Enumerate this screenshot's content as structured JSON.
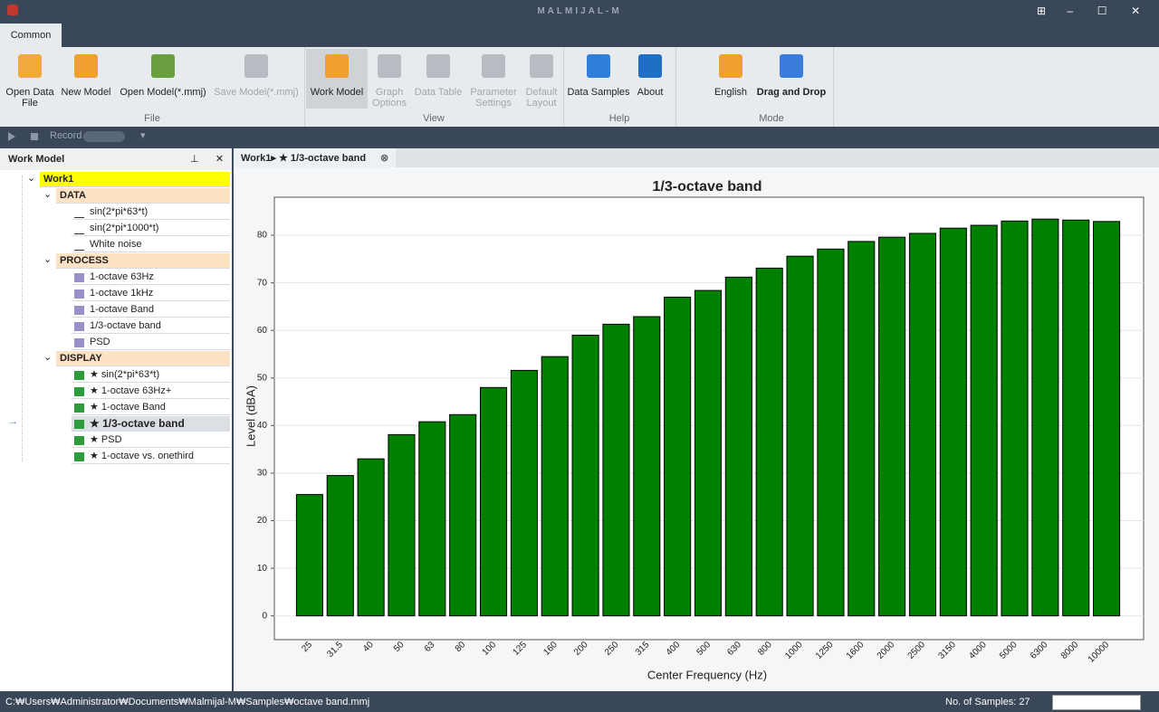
{
  "app": {
    "title": "MALMIJAL-M"
  },
  "ribbon": {
    "tab": "Common",
    "groups": [
      {
        "label": "File",
        "buttons": [
          {
            "label": "Open Data File",
            "enabled": true
          },
          {
            "label": "New Model",
            "enabled": true
          },
          {
            "label": "Open Model(*.mmj)",
            "enabled": true
          },
          {
            "label": "Save Model(*.mmj)",
            "enabled": false
          }
        ]
      },
      {
        "label": "View",
        "buttons": [
          {
            "label": "Work Model",
            "enabled": true
          },
          {
            "label": "Graph Options",
            "enabled": false
          },
          {
            "label": "Data Table",
            "enabled": false
          },
          {
            "label": "Parameter Settings",
            "enabled": false
          },
          {
            "label": "Default Layout",
            "enabled": false
          }
        ]
      },
      {
        "label": "Help",
        "buttons": [
          {
            "label": "Data Samples",
            "enabled": true
          },
          {
            "label": "About",
            "enabled": true
          }
        ]
      },
      {
        "label": "Mode",
        "buttons": [
          {
            "label": "English",
            "enabled": true
          },
          {
            "label": "Drag and Drop",
            "enabled": true
          }
        ]
      }
    ]
  },
  "toolbar": {
    "record": "Record"
  },
  "work_model": {
    "title": "Work Model",
    "root": "Work1",
    "sections": [
      {
        "label": "DATA",
        "items": [
          {
            "label": "sin(2*pi*63*t)"
          },
          {
            "label": "sin(2*pi*1000*t)"
          },
          {
            "label": "White noise"
          }
        ]
      },
      {
        "label": "PROCESS",
        "items": [
          {
            "label": "1-octave 63Hz"
          },
          {
            "label": "1-octave 1kHz"
          },
          {
            "label": "1-octave Band"
          },
          {
            "label": "1/3-octave band"
          },
          {
            "label": "PSD"
          }
        ]
      },
      {
        "label": "DISPLAY",
        "items": [
          {
            "label": "★ sin(2*pi*63*t)"
          },
          {
            "label": "★ 1-octave 63Hz+"
          },
          {
            "label": "★ 1-octave Band"
          },
          {
            "label": "★ 1/3-octave band",
            "selected": true
          },
          {
            "label": "★ PSD"
          },
          {
            "label": "★ 1-octave vs. onethird"
          }
        ]
      }
    ]
  },
  "document_tab": "Work1▸ ★ 1/3-octave band",
  "chart_data": {
    "type": "bar",
    "title": "1/3-octave band",
    "x_label": "Center Frequency (Hz)",
    "y_label": "Level (dBA)",
    "categories": [
      "25",
      "31.5",
      "40",
      "50",
      "63",
      "80",
      "100",
      "125",
      "160",
      "200",
      "250",
      "315",
      "400",
      "500",
      "630",
      "800",
      "1000",
      "1250",
      "1600",
      "2000",
      "2500",
      "3150",
      "4000",
      "5000",
      "6300",
      "8000",
      "10000"
    ],
    "values": [
      25.5,
      29.5,
      33.0,
      38.1,
      40.8,
      42.3,
      48.0,
      51.6,
      54.5,
      59.0,
      61.3,
      62.9,
      67.0,
      68.4,
      71.2,
      73.1,
      75.6,
      77.1,
      78.7,
      79.6,
      80.4,
      81.5,
      82.1,
      83.0,
      83.4,
      83.2,
      82.9
    ],
    "color": "#008000",
    "ylim": [
      -5,
      88
    ],
    "yticks": [
      0,
      10,
      20,
      30,
      40,
      50,
      60,
      70,
      80
    ],
    "grid": true
  },
  "status": {
    "path": "C:₩Users₩Administrator₩Documents₩Malmijal-M₩Samples₩octave band.mmj",
    "samples": "No. of Samples: 27"
  }
}
